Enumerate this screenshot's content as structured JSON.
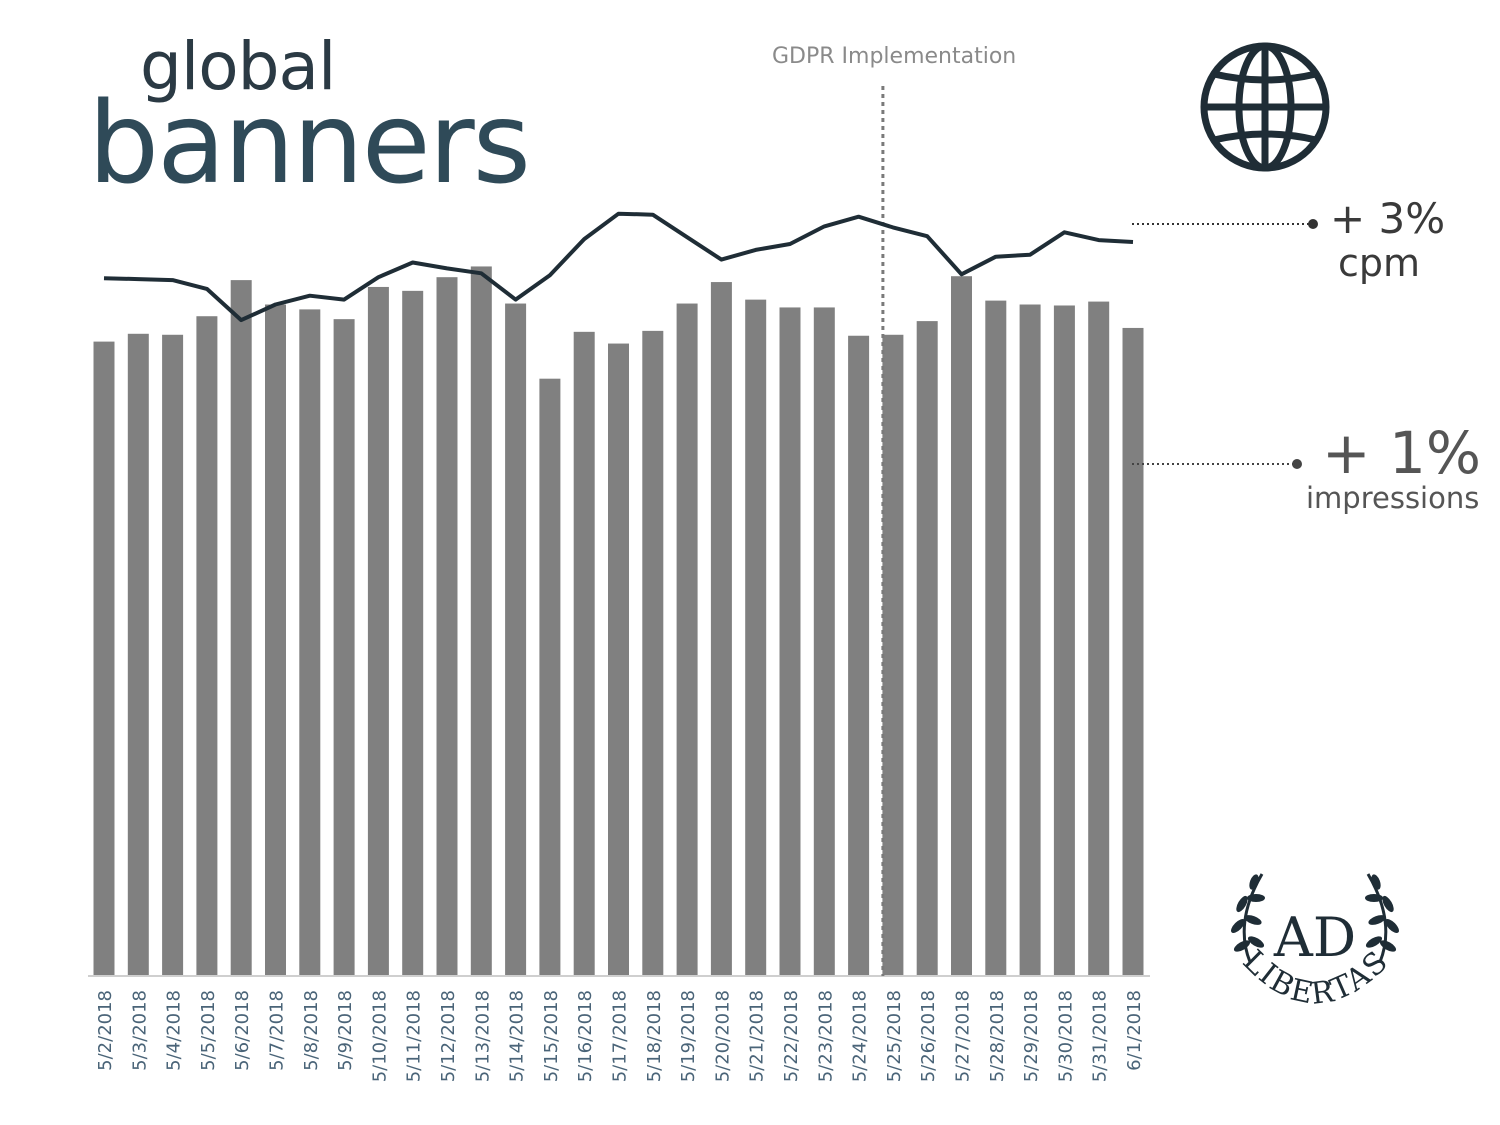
{
  "title": {
    "line1": "global",
    "line2": "banners"
  },
  "annotation": {
    "label": "GDPR Implementation",
    "category": "5/25/2018"
  },
  "callouts": {
    "cpm": {
      "value": "+ 3%",
      "label": "cpm"
    },
    "impressions": {
      "value": "+ 1%",
      "label": "impressions"
    }
  },
  "logo": {
    "letters": "AD",
    "word": "LIBERTAS"
  },
  "colors": {
    "bars": "#808080",
    "line": "#1f2d36",
    "title": "#2f4a58",
    "axis_labels": "#4a6478",
    "annotation": "#8a8a8a"
  },
  "icons": {
    "globe": "globe-icon",
    "logo": "ad-libertas-laurel-logo"
  },
  "chart_data": {
    "type": "bar",
    "categories": [
      "5/2/2018",
      "5/3/2018",
      "5/4/2018",
      "5/5/2018",
      "5/6/2018",
      "5/7/2018",
      "5/8/2018",
      "5/9/2018",
      "5/10/2018",
      "5/11/2018",
      "5/12/2018",
      "5/13/2018",
      "5/14/2018",
      "5/15/2018",
      "5/16/2018",
      "5/17/2018",
      "5/18/2018",
      "5/19/2018",
      "5/20/2018",
      "5/21/2018",
      "5/22/2018",
      "5/23/2018",
      "5/24/2018",
      "5/25/2018",
      "5/26/2018",
      "5/27/2018",
      "5/28/2018",
      "5/29/2018",
      "5/30/2018",
      "5/31/2018",
      "6/1/2018"
    ],
    "series": [
      {
        "type": "bar",
        "values": [
          650,
          658,
          657,
          676,
          713,
          688,
          683,
          673,
          706,
          702,
          716,
          727,
          689,
          612,
          660,
          648,
          661,
          689,
          711,
          693,
          685,
          685,
          656,
          657,
          671,
          717,
          692,
          688,
          687,
          691,
          664
        ]
      },
      {
        "type": "line",
        "values": [
          715,
          714,
          713,
          704,
          672,
          688,
          697,
          693,
          716,
          731,
          725,
          720,
          693,
          718,
          755,
          781,
          780,
          757,
          734,
          744,
          750,
          768,
          778,
          767,
          758,
          719,
          737,
          739,
          762,
          754,
          752
        ]
      }
    ],
    "ylim": [
      0,
      1000
    ],
    "title": "",
    "xlabel": "",
    "ylabel": "",
    "grid": false,
    "legend": "none"
  }
}
